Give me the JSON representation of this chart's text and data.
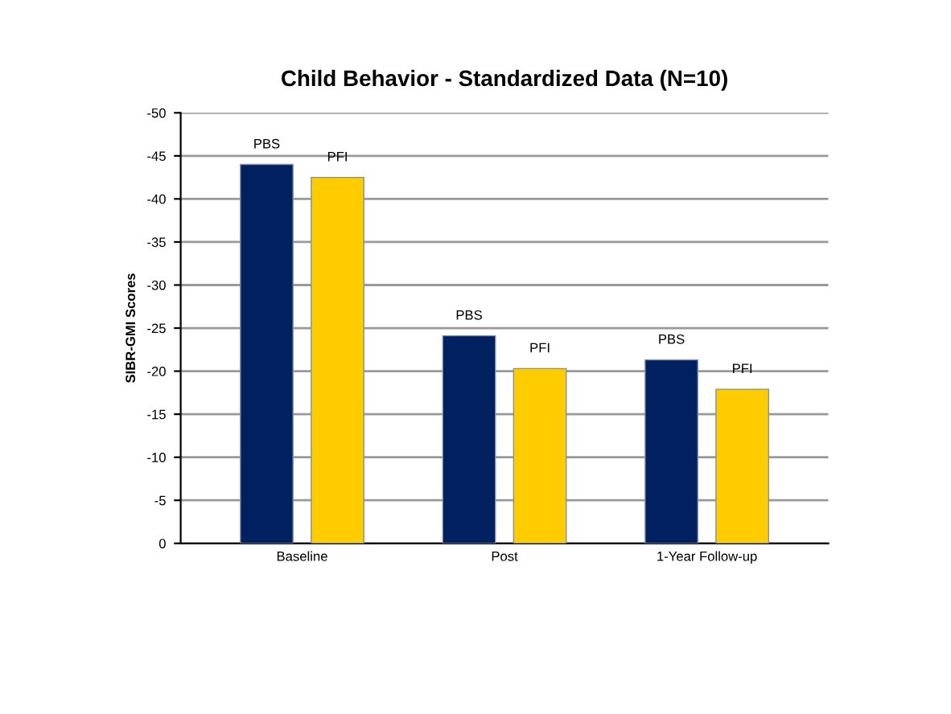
{
  "chart_data": {
    "type": "bar",
    "title": "Child Behavior - Standardized Data (N=10)",
    "ylabel": "SIBR-GMI Scores",
    "categories": [
      "Baseline",
      "Post",
      "1-Year Follow-up"
    ],
    "series": [
      {
        "name": "PBS",
        "color": "#002060",
        "values": [
          -44.0,
          -24.1,
          -21.3
        ]
      },
      {
        "name": "PFI",
        "color": "#ffcc00",
        "values": [
          -42.5,
          -20.3,
          -17.9
        ]
      }
    ],
    "ylim": [
      0,
      -50
    ],
    "yticks": [
      0,
      -5,
      -10,
      -15,
      -20,
      -25,
      -30,
      -35,
      -40,
      -45,
      -50
    ],
    "grid": "y"
  }
}
